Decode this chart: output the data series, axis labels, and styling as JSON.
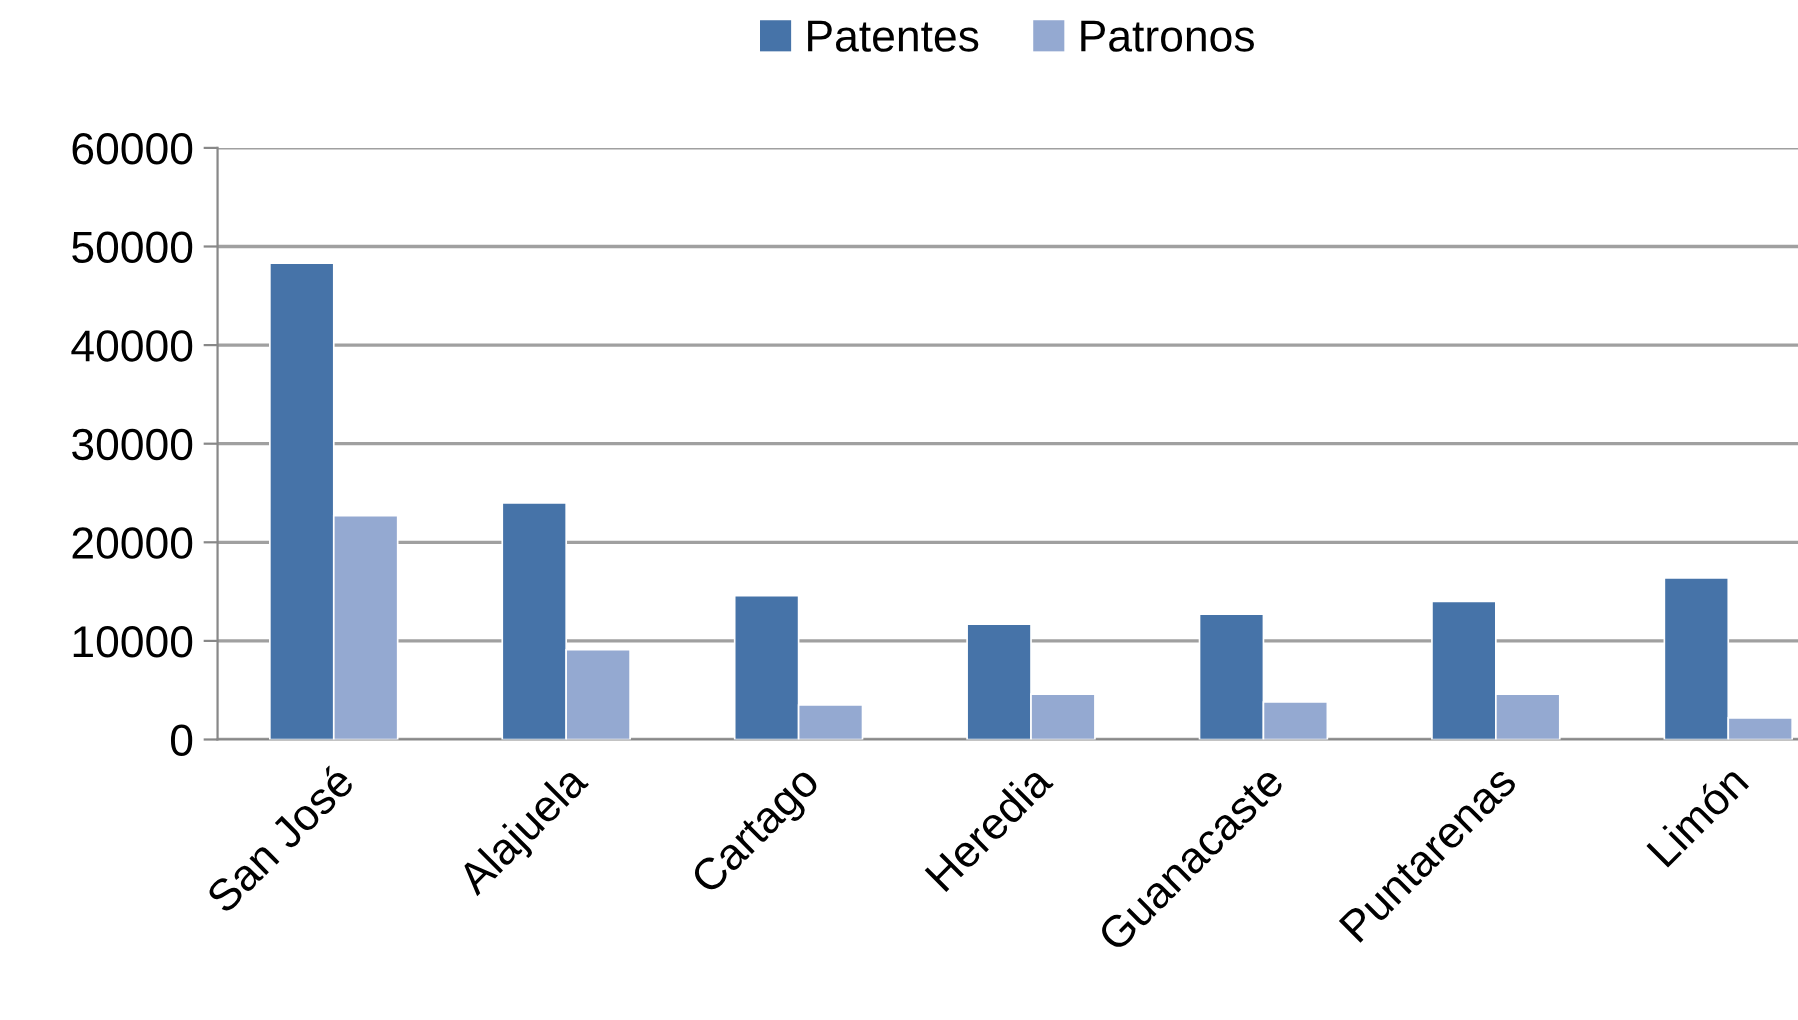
{
  "chart_data": {
    "type": "bar",
    "categories": [
      "San José",
      "Alajuela",
      "Cartago",
      "Heredia",
      "Guanacaste",
      "Puntarenas",
      "Limón"
    ],
    "series": [
      {
        "name": "Patentes",
        "color": "#4673a8",
        "values": [
          48300,
          24000,
          14600,
          11700,
          12700,
          14000,
          16400
        ]
      },
      {
        "name": "Patronos",
        "color": "#94a9d1",
        "values": [
          22700,
          9100,
          3500,
          4600,
          3800,
          4600,
          2200
        ]
      }
    ],
    "ylim": [
      0,
      60000
    ],
    "yticks": [
      0,
      10000,
      20000,
      30000,
      40000,
      50000,
      60000
    ],
    "grid": "y",
    "legend": "top"
  }
}
